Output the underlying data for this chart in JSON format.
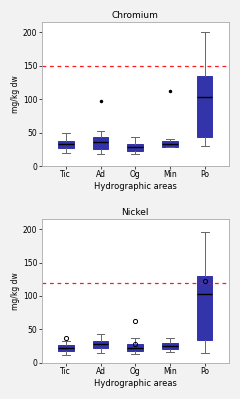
{
  "title_top": "Chromium",
  "title_bottom": "Nickel",
  "categories": [
    "Tic",
    "Ad",
    "Og",
    "Min",
    "Po"
  ],
  "xlabel": "Hydrographic areas",
  "ylabel": "mg/kg dw",
  "chromium": {
    "limit_line": 150,
    "box_color": "#3333aa",
    "box_facecolor": "#5555cc",
    "whisker_color": "#666666",
    "boxes": [
      {
        "med": 33,
        "q1": 27,
        "q3": 38,
        "whislo": 20,
        "whishi": 50,
        "fliers": []
      },
      {
        "med": 36,
        "q1": 25,
        "q3": 43,
        "whislo": 18,
        "whishi": 52,
        "fliers": [
          98
        ]
      },
      {
        "med": 29,
        "q1": 23,
        "q3": 33,
        "whislo": 18,
        "whishi": 43,
        "fliers": []
      },
      {
        "med": 33,
        "q1": 29,
        "q3": 38,
        "whislo": 28,
        "whishi": 40,
        "fliers": [
          112
        ]
      },
      {
        "med": 103,
        "q1": 43,
        "q3": 135,
        "whislo": 30,
        "whishi": 200,
        "fliers": []
      }
    ]
  },
  "nickel": {
    "limit_line": 120,
    "box_color": "#3333aa",
    "box_facecolor": "#5555cc",
    "whisker_color": "#666666",
    "boxes": [
      {
        "med": 23,
        "q1": 18,
        "q3": 27,
        "whislo": 12,
        "whishi": 33,
        "circle_fliers": [
          38
        ]
      },
      {
        "med": 28,
        "q1": 22,
        "q3": 33,
        "whislo": 15,
        "whishi": 43,
        "circle_fliers": []
      },
      {
        "med": 23,
        "q1": 18,
        "q3": 28,
        "whislo": 13,
        "whishi": 37,
        "circle_fliers": [
          28,
          62
        ]
      },
      {
        "med": 26,
        "q1": 21,
        "q3": 30,
        "whislo": 16,
        "whishi": 37,
        "circle_fliers": []
      },
      {
        "med": 103,
        "q1": 35,
        "q3": 130,
        "whislo": 15,
        "whishi": 195,
        "circle_fliers": [
          122
        ]
      }
    ]
  },
  "ylim": [
    0,
    215
  ],
  "yticks": [
    0,
    50,
    100,
    150,
    200
  ],
  "plot_bg": "#ffffff",
  "outer_bg": "#f2f2f2",
  "border_color": "#aaaaaa"
}
